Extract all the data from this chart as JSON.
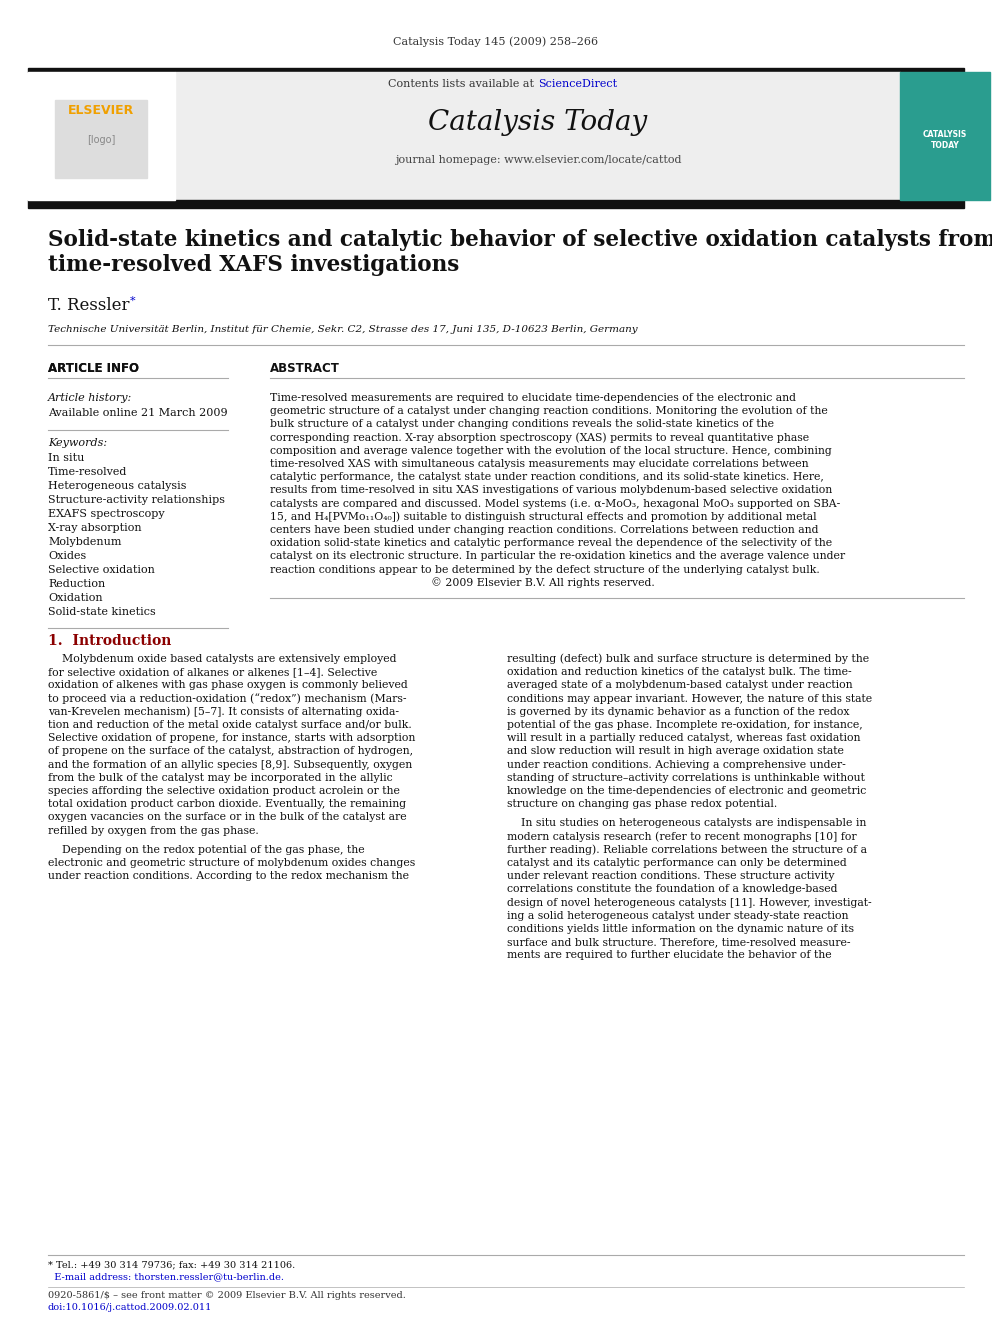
{
  "page_title": "Catalysis Today 145 (2009) 258–266",
  "journal_name": "Catalysis Today",
  "journal_subtitle": "journal homepage: www.elsevier.com/locate/cattod",
  "contents_line": "Contents lists available at ScienceDirect",
  "paper_title": "Solid-state kinetics and catalytic behavior of selective oxidation catalysts from\ntime-resolved XAFS investigations",
  "author": "T. Ressler *",
  "affiliation": "Technische Universität Berlin, Institut für Chemie, Sekr. C2, Strasse des 17, Juni 135, D-10623 Berlin, Germany",
  "article_info_title": "ARTICLE INFO",
  "abstract_title": "ABSTRACT",
  "article_history_label": "Article history:",
  "available_online": "Available online 21 March 2009",
  "keywords_label": "Keywords:",
  "keywords": [
    "In situ",
    "Time-resolved",
    "Heterogeneous catalysis",
    "Structure-activity relationships",
    "EXAFS spectroscopy",
    "X-ray absorption",
    "Molybdenum",
    "Oxides",
    "Selective oxidation",
    "Reduction",
    "Oxidation",
    "Solid-state kinetics"
  ],
  "abstract_text": "Time-resolved measurements are required to elucidate time-dependencies of the electronic and geometric structure of a catalyst under changing reaction conditions. Monitoring the evolution of the bulk structure of a catalyst under changing conditions reveals the solid-state kinetics of the corresponding reaction. X-ray absorption spectroscopy (XAS) permits to reveal quantitative phase composition and average valence together with the evolution of the local structure. Hence, combining time-resolved XAS with simultaneous catalysis measurements may elucidate correlations between catalytic performance, the catalyst state under reaction conditions, and its solid-state kinetics. Here, results from time-resolved in situ XAS investigations of various molybdenum-based selective oxidation catalysts are compared and discussed. Model systems (i.e. α-MoO₃, hexagonal MoO₃ supported on SBA-15, and H₄[PVMo₁₁O₄₀]) suitable to distinguish structural effects and promotion by additional metal centers have been studied under changing reaction conditions. Correlations between reduction and oxidation solid-state kinetics and catalytic performance reveal the dependence of the selectivity of the catalyst on its electronic structure. In particular the re-oxidation kinetics and the average valence under reaction conditions appear to be determined by the defect structure of the underlying catalyst bulk.\n© 2009 Elsevier B.V. All rights reserved.",
  "section1_title": "1.  Introduction",
  "intro_left": "Molybdenum oxide based catalysts are extensively employed for selective oxidation of alkanes or alkenes [1–4]. Selective oxidation of alkenes with gas phase oxygen is commonly believed to proceed via a reduction-oxidation (“redox”) mechanism (Mars-van-Krevelen mechanism) [5–7]. It consists of alternating oxidation and reduction of the metal oxide catalyst surface and/or bulk. Selective oxidation of propene, for instance, starts with adsorption of propene on the surface of the catalyst, abstraction of hydrogen, and the formation of an allylic species [8,9]. Subsequently, oxygen from the bulk of the catalyst may be incorporated in the allylic species affording the selective oxidation product acrolein or the total oxidation product carbon dioxide. Eventually, the remaining oxygen vacancies on the surface or in the bulk of the catalyst are refilled by oxygen from the gas phase.\n\nDepending on the redox potential of the gas phase, the electronic and geometric structure of molybdenum oxides changes under reaction conditions. According to the redox mechanism the",
  "intro_right": "resulting (defect) bulk and surface structure is determined by the oxidation and reduction kinetics of the catalyst bulk. The time-averaged state of a molybdenum-based catalyst under reaction conditions may appear invariant. However, the nature of this state is governed by its dynamic behavior as a function of the redox potential of the gas phase. Incomplete re-oxidation, for instance, will result in a partially reduced catalyst, whereas fast oxidation and slow reduction will result in high average oxidation state under reaction conditions. Achieving a comprehensive understanding of structure–activity correlations is unthinkable without knowledge on the time-dependencies of electronic and geometric structure on changing gas phase redox potential.\n\nIn situ studies on heterogeneous catalysts are indispensable in modern catalysis research (refer to recent monographs [10] for further reading). Reliable correlations between the structure of a catalyst and its catalytic performance can only be determined under relevant reaction conditions. These structure activity correlations constitute the foundation of a knowledge-based design of novel heterogeneous catalysts [11]. However, investigating a solid heterogeneous catalyst under steady-state reaction conditions yields little information on the dynamic nature of its surface and bulk structure. Therefore, time-resolved measurements are required to further elucidate the behavior of the",
  "footnote": "* Tel.: +49 30 314 79736; fax: +49 30 314 21106.\n  E-mail address: thorsten.ressler@tu-berlin.de.",
  "footer": "0920-5861/$ – see front matter © 2009 Elsevier B.V. All rights reserved.\ndoi:10.1016/j.cattod.2009.02.011",
  "bg_color": "#ffffff",
  "header_bg": "#f0f0f0",
  "header_border": "#000000",
  "text_color": "#000000",
  "link_color": "#0000cc",
  "title_color": "#000000",
  "section_title_color": "#8B0000"
}
